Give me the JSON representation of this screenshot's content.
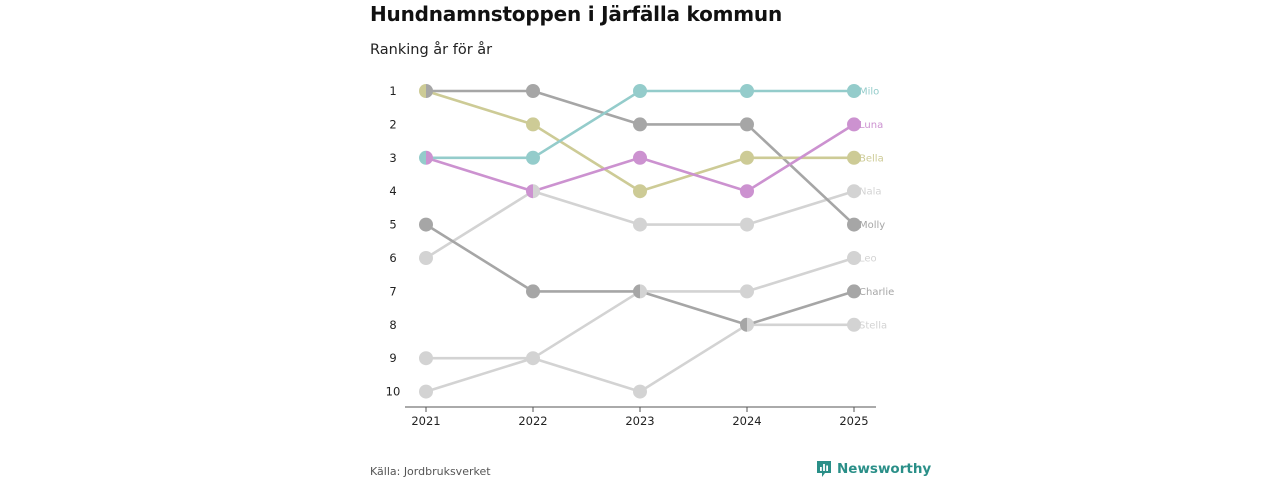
{
  "header": {
    "title": "Hundnamnstoppen i Järfälla kommun",
    "subtitle": "Ranking år för år"
  },
  "footer": {
    "source": "Källa: Jordbruksverket",
    "brand": "Newsworthy"
  },
  "colors": {
    "axis": "#555555",
    "tick_text": "#222222",
    "brand": "#2a8f88"
  },
  "chart_data": {
    "type": "line",
    "subtype": "bump",
    "title": "Hundnamnstoppen i Järfälla kommun",
    "subtitle": "Ranking år för år",
    "x": [
      "2021",
      "2022",
      "2023",
      "2024",
      "2025"
    ],
    "y_ticks": [
      "1",
      "2",
      "3",
      "4",
      "5",
      "6",
      "7",
      "8",
      "9",
      "10"
    ],
    "ylim": [
      1,
      10
    ],
    "y_inverted": true,
    "grid": false,
    "series": [
      {
        "name": "Nala",
        "color": "#d3d3d3",
        "values": [
          6,
          4,
          5,
          5,
          4
        ]
      },
      {
        "name": "Leo",
        "color": "#d3d3d3",
        "values": [
          10,
          9,
          7,
          7,
          6
        ]
      },
      {
        "name": "Stella",
        "color": "#d3d3d3",
        "values": [
          9,
          9,
          10,
          8,
          8
        ]
      },
      {
        "name": "Charlie",
        "color": "#a6a6a6",
        "values": [
          5,
          7,
          7,
          8,
          7
        ]
      },
      {
        "name": "Molly",
        "color": "#a6a6a6",
        "values": [
          1,
          1,
          2,
          2,
          5
        ]
      },
      {
        "name": "Bella",
        "color": "#cdcb96",
        "values": [
          1,
          2,
          4,
          3,
          3
        ]
      },
      {
        "name": "Luna",
        "color": "#cc92d0",
        "values": [
          3,
          4,
          3,
          4,
          2
        ]
      },
      {
        "name": "Milo",
        "color": "#94cccb",
        "values": [
          3,
          3,
          1,
          1,
          1
        ]
      }
    ]
  }
}
